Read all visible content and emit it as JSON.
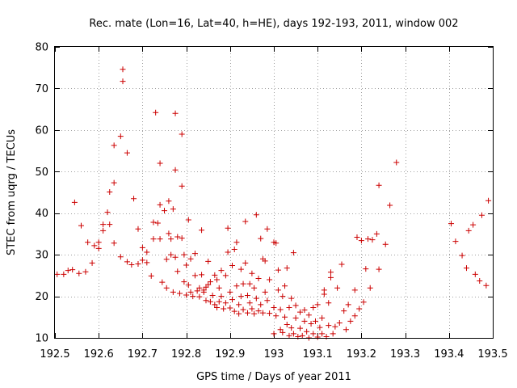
{
  "chart_data": {
    "type": "scatter",
    "title": "Rec. mate (Lon=16, Lat=40, h=HE), days 192-193, 2011, window 002",
    "xlabel": "GPS time / Days of year 2011",
    "ylabel": "STEC from uqrg / TECUs",
    "xlim": [
      192.5,
      193.5
    ],
    "ylim": [
      10,
      80
    ],
    "xticks": [
      192.5,
      192.6,
      192.7,
      192.8,
      192.9,
      193.0,
      193.1,
      193.2,
      193.3,
      193.4,
      193.5
    ],
    "xtick_labels": [
      "192.5",
      "192.6",
      "192.7",
      "192.8",
      "192.9",
      "193",
      "193.1",
      "193.2",
      "193.3",
      "193.4",
      "193.5"
    ],
    "yticks": [
      10,
      20,
      30,
      40,
      50,
      60,
      70,
      80
    ],
    "ytick_labels": [
      "10",
      "20",
      "30",
      "40",
      "50",
      "60",
      "70",
      "80"
    ],
    "grid": true,
    "marker": "plus",
    "color": "#cc0000",
    "points": [
      [
        192.505,
        25.3
      ],
      [
        192.52,
        25.3
      ],
      [
        192.53,
        26.2
      ],
      [
        192.54,
        26.4
      ],
      [
        192.545,
        42.6
      ],
      [
        192.555,
        25.5
      ],
      [
        192.56,
        37.0
      ],
      [
        192.57,
        25.9
      ],
      [
        192.575,
        33.0
      ],
      [
        192.585,
        28.0
      ],
      [
        192.59,
        32.2
      ],
      [
        192.6,
        33.0
      ],
      [
        192.6,
        31.5
      ],
      [
        192.61,
        37.3
      ],
      [
        192.61,
        35.8
      ],
      [
        192.62,
        40.2
      ],
      [
        192.625,
        37.3
      ],
      [
        192.625,
        45.1
      ],
      [
        192.635,
        56.3
      ],
      [
        192.635,
        47.3
      ],
      [
        192.635,
        32.8
      ],
      [
        192.65,
        29.5
      ],
      [
        192.65,
        58.5
      ],
      [
        192.655,
        71.7
      ],
      [
        192.655,
        74.6
      ],
      [
        192.665,
        54.5
      ],
      [
        192.665,
        28.3
      ],
      [
        192.675,
        27.6
      ],
      [
        192.68,
        43.5
      ],
      [
        192.69,
        36.2
      ],
      [
        192.69,
        27.8
      ],
      [
        192.7,
        28.7
      ],
      [
        192.7,
        31.7
      ],
      [
        192.71,
        28.1
      ],
      [
        192.71,
        30.6
      ],
      [
        192.72,
        24.9
      ],
      [
        192.725,
        33.8
      ],
      [
        192.725,
        37.8
      ],
      [
        192.73,
        64.2
      ],
      [
        192.735,
        37.6
      ],
      [
        192.74,
        33.8
      ],
      [
        192.74,
        42.0
      ],
      [
        192.74,
        52.0
      ],
      [
        192.745,
        23.4
      ],
      [
        192.75,
        40.6
      ],
      [
        192.755,
        22.0
      ],
      [
        192.755,
        28.9
      ],
      [
        192.76,
        42.9
      ],
      [
        192.76,
        35.1
      ],
      [
        192.765,
        33.8
      ],
      [
        192.765,
        30.0
      ],
      [
        192.77,
        21.0
      ],
      [
        192.77,
        41.0
      ],
      [
        192.775,
        50.4
      ],
      [
        192.775,
        64.0
      ],
      [
        192.775,
        29.4
      ],
      [
        192.78,
        34.3
      ],
      [
        192.78,
        26.0
      ],
      [
        192.785,
        20.7
      ],
      [
        192.79,
        59.0
      ],
      [
        192.79,
        46.5
      ],
      [
        192.79,
        34.0
      ],
      [
        192.795,
        23.5
      ],
      [
        192.795,
        30.0
      ],
      [
        192.8,
        27.5
      ],
      [
        192.8,
        20.3
      ],
      [
        192.805,
        22.7
      ],
      [
        192.805,
        38.4
      ],
      [
        192.81,
        29.0
      ],
      [
        192.81,
        21.0
      ],
      [
        192.815,
        20.0
      ],
      [
        192.82,
        30.3
      ],
      [
        192.82,
        25.0
      ],
      [
        192.825,
        21.3
      ],
      [
        192.83,
        22.0
      ],
      [
        192.83,
        19.9
      ],
      [
        192.835,
        35.9
      ],
      [
        192.835,
        25.2
      ],
      [
        192.84,
        21.5
      ],
      [
        192.84,
        21.0
      ],
      [
        192.845,
        22.2
      ],
      [
        192.845,
        19.0
      ],
      [
        192.85,
        22.8
      ],
      [
        192.85,
        28.4
      ],
      [
        192.855,
        23.5
      ],
      [
        192.855,
        18.7
      ],
      [
        192.86,
        20.2
      ],
      [
        192.865,
        25.1
      ],
      [
        192.865,
        18.0
      ],
      [
        192.87,
        17.3
      ],
      [
        192.87,
        24.0
      ],
      [
        192.875,
        22.0
      ],
      [
        192.875,
        18.7
      ],
      [
        192.88,
        26.2
      ],
      [
        192.88,
        20.0
      ],
      [
        192.885,
        17.0
      ],
      [
        192.89,
        25.0
      ],
      [
        192.89,
        18.4
      ],
      [
        192.895,
        36.4
      ],
      [
        192.895,
        30.6
      ],
      [
        192.9,
        21.0
      ],
      [
        192.9,
        17.2
      ],
      [
        192.905,
        27.4
      ],
      [
        192.905,
        19.2
      ],
      [
        192.91,
        16.4
      ],
      [
        192.91,
        31.3
      ],
      [
        192.915,
        33.0
      ],
      [
        192.915,
        22.5
      ],
      [
        192.92,
        18.0
      ],
      [
        192.92,
        15.8
      ],
      [
        192.925,
        20.0
      ],
      [
        192.925,
        26.5
      ],
      [
        192.93,
        23.0
      ],
      [
        192.93,
        16.8
      ],
      [
        192.935,
        38.0
      ],
      [
        192.935,
        28.0
      ],
      [
        192.94,
        20.2
      ],
      [
        192.94,
        16.0
      ],
      [
        192.945,
        23.0
      ],
      [
        192.945,
        18.4
      ],
      [
        192.95,
        25.5
      ],
      [
        192.95,
        17.0
      ],
      [
        192.955,
        22.0
      ],
      [
        192.955,
        15.8
      ],
      [
        192.96,
        39.6
      ],
      [
        192.96,
        19.5
      ],
      [
        192.965,
        16.5
      ],
      [
        192.965,
        24.3
      ],
      [
        192.97,
        33.9
      ],
      [
        192.97,
        18.0
      ],
      [
        192.975,
        29.0
      ],
      [
        192.975,
        16.0
      ],
      [
        192.98,
        21.0
      ],
      [
        192.98,
        28.5
      ],
      [
        192.985,
        36.2
      ],
      [
        192.985,
        19.0
      ],
      [
        192.99,
        15.9
      ],
      [
        192.99,
        24.0
      ],
      [
        193.0,
        33.0
      ],
      [
        193.0,
        17.3
      ],
      [
        193.0,
        11.0
      ],
      [
        193.005,
        15.3
      ],
      [
        193.005,
        32.8
      ],
      [
        193.01,
        26.3
      ],
      [
        193.01,
        21.5
      ],
      [
        193.015,
        12.0
      ],
      [
        193.015,
        16.8
      ],
      [
        193.02,
        11.3
      ],
      [
        193.02,
        20.0
      ],
      [
        193.025,
        15.0
      ],
      [
        193.025,
        22.5
      ],
      [
        193.03,
        26.8
      ],
      [
        193.03,
        13.2
      ],
      [
        193.035,
        10.5
      ],
      [
        193.035,
        17.3
      ],
      [
        193.04,
        19.5
      ],
      [
        193.04,
        12.4
      ],
      [
        193.045,
        30.5
      ],
      [
        193.045,
        11.0
      ],
      [
        193.05,
        14.8
      ],
      [
        193.05,
        17.8
      ],
      [
        193.055,
        10.3
      ],
      [
        193.06,
        16.2
      ],
      [
        193.06,
        12.3
      ],
      [
        193.065,
        10.5
      ],
      [
        193.07,
        14.0
      ],
      [
        193.07,
        16.7
      ],
      [
        193.075,
        11.5
      ],
      [
        193.08,
        10.0
      ],
      [
        193.08,
        15.5
      ],
      [
        193.085,
        13.4
      ],
      [
        193.09,
        11.0
      ],
      [
        193.09,
        17.3
      ],
      [
        193.095,
        14.0
      ],
      [
        193.1,
        10.2
      ],
      [
        193.1,
        18.0
      ],
      [
        193.105,
        12.5
      ],
      [
        193.11,
        11.0
      ],
      [
        193.11,
        14.8
      ],
      [
        193.115,
        21.5
      ],
      [
        193.115,
        20.5
      ],
      [
        193.12,
        10.3
      ],
      [
        193.125,
        13.0
      ],
      [
        193.125,
        18.4
      ],
      [
        193.13,
        24.5
      ],
      [
        193.13,
        25.8
      ],
      [
        193.135,
        11.0
      ],
      [
        193.14,
        12.7
      ],
      [
        193.145,
        22.0
      ],
      [
        193.15,
        13.6
      ],
      [
        193.155,
        27.7
      ],
      [
        193.16,
        16.5
      ],
      [
        193.165,
        12.0
      ],
      [
        193.17,
        18.0
      ],
      [
        193.175,
        14.0
      ],
      [
        193.185,
        21.5
      ],
      [
        193.185,
        15.3
      ],
      [
        193.19,
        34.2
      ],
      [
        193.195,
        17.0
      ],
      [
        193.2,
        33.4
      ],
      [
        193.205,
        18.6
      ],
      [
        193.21,
        26.6
      ],
      [
        193.215,
        33.8
      ],
      [
        193.22,
        22.0
      ],
      [
        193.225,
        33.6
      ],
      [
        193.235,
        35.0
      ],
      [
        193.24,
        26.5
      ],
      [
        193.24,
        46.7
      ],
      [
        193.255,
        32.5
      ],
      [
        193.265,
        41.9
      ],
      [
        193.28,
        52.2
      ],
      [
        193.405,
        37.5
      ],
      [
        193.415,
        33.2
      ],
      [
        193.43,
        29.8
      ],
      [
        193.44,
        26.8
      ],
      [
        193.445,
        35.8
      ],
      [
        193.455,
        37.2
      ],
      [
        193.46,
        25.3
      ],
      [
        193.47,
        23.7
      ],
      [
        193.475,
        39.5
      ],
      [
        193.485,
        22.6
      ],
      [
        193.49,
        43.0
      ]
    ]
  }
}
